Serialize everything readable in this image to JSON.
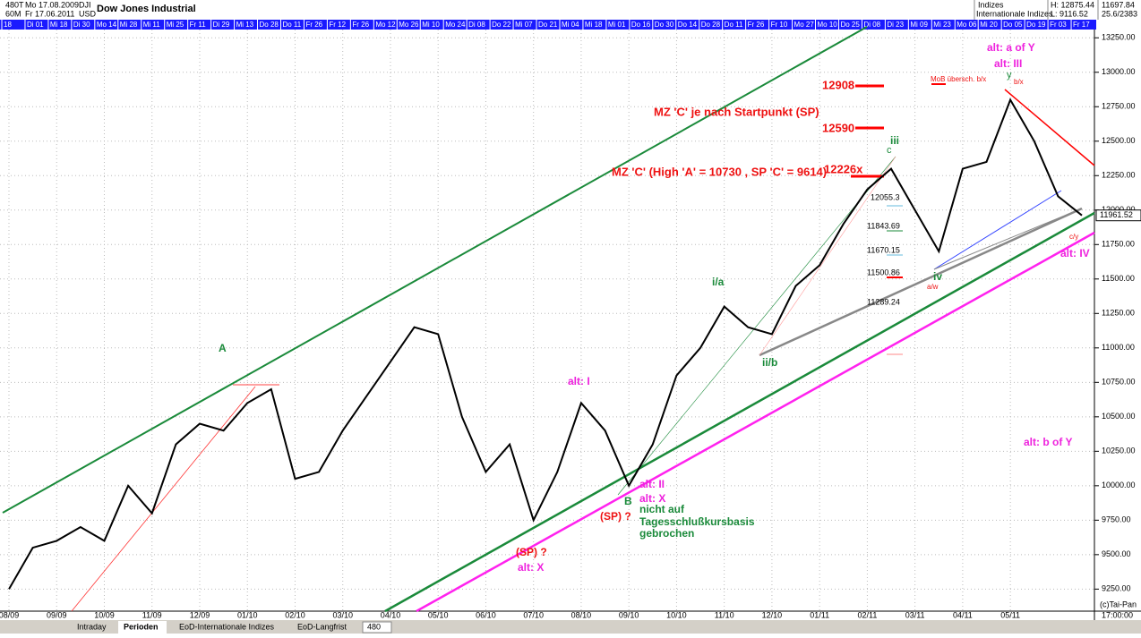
{
  "header": {
    "code": "480T",
    "from": "Mo 17.08.2009",
    "symbol": "DJI",
    "period": "60M",
    "to": "Fr 17.06.2011",
    "currency": "USD",
    "name": "Dow Jones Industrial",
    "group": "Indizes",
    "subgroup": "Internationale Indizes",
    "high": "H: 12875.44",
    "low": "L: 9116.52",
    "value1": "11697.84",
    "value2": "25.6/2383"
  },
  "date_strip": [
    "18",
    "Di 01",
    "Mi 18",
    "Di 30",
    "Mo 14",
    "Mi 28",
    "Mi 11",
    "Mi 25",
    "Fr 11",
    "Di 29",
    "Mi 13",
    "Do 28",
    "Do 11",
    "Fr 26",
    "Fr 12",
    "Fr 26",
    "Mo 12",
    "Mo 26",
    "Mi 10",
    "Mo 24",
    "Di 08",
    "Do 22",
    "Mi 07",
    "Do 21",
    "Mi 04",
    "Mi 18",
    "Mi 01",
    "Do 16",
    "Do 30",
    "Do 14",
    "Do 28",
    "Do 11",
    "Fr 26",
    "Fr 10",
    "Mo 27",
    "Mo 10",
    "Do 25",
    "Di 08",
    "Di 23",
    "Mi 09",
    "Mi 23",
    "Mo 06",
    "Mi 20",
    "Do 05",
    "Do 19",
    "Fr 03",
    "Fr 17"
  ],
  "chart_data": {
    "type": "line",
    "grid": true,
    "categories": [
      "08/09",
      null,
      "09/09",
      null,
      "10/09",
      null,
      "11/09",
      null,
      "12/09",
      null,
      "01/10",
      null,
      "02/10",
      null,
      "03/10",
      null,
      "04/10",
      null,
      "05/10",
      null,
      "06/10",
      null,
      "07/10",
      null,
      "08/10",
      null,
      "09/10",
      null,
      "10/10",
      null,
      "11/10",
      null,
      "12/10",
      null,
      "01/11",
      null,
      "02/11",
      null,
      "03/11",
      null,
      "04/11",
      null,
      "05/11",
      null,
      null,
      null
    ],
    "series": [
      {
        "name": "DJI",
        "color": "#000000",
        "values": [
          9250,
          9550,
          9600,
          9700,
          9600,
          10000,
          9800,
          10300,
          10450,
          10400,
          10600,
          10700,
          10050,
          10100,
          10400,
          10650,
          10900,
          11150,
          11100,
          10500,
          10100,
          10300,
          9750,
          10100,
          10600,
          10400,
          10000,
          10300,
          10800,
          11000,
          11300,
          11150,
          11100,
          11450,
          11600,
          11900,
          12150,
          12300,
          12000,
          11700,
          12300,
          12350,
          12800,
          12500,
          12100,
          11961.52
        ]
      }
    ],
    "ylim": [
      9090,
      13310
    ],
    "yticks": [
      {
        "value": 9250,
        "label": "9250.00"
      },
      {
        "value": 9500,
        "label": "9500.00"
      },
      {
        "value": 9750,
        "label": "9750.00"
      },
      {
        "value": 10000,
        "label": "10000.00"
      },
      {
        "value": 10250,
        "label": "10250.00"
      },
      {
        "value": 10500,
        "label": "10500.00"
      },
      {
        "value": 10750,
        "label": "10750.00"
      },
      {
        "value": 11000,
        "label": "11000.00"
      },
      {
        "value": 11250,
        "label": "11250.00"
      },
      {
        "value": 11500,
        "label": "11500.00"
      },
      {
        "value": 11750,
        "label": "11750.00"
      },
      {
        "value": 12000,
        "label": "12000.00"
      },
      {
        "value": 12250,
        "label": "12250.00"
      },
      {
        "value": 12500,
        "label": "12500.00"
      },
      {
        "value": 12750,
        "label": "12750.00"
      },
      {
        "value": 13000,
        "label": "13000.00"
      },
      {
        "value": 13250,
        "label": "13250.00"
      }
    ],
    "price_label": "11961.52",
    "annotations": [
      "A",
      "alt: I",
      "alt: II",
      "alt: X",
      "B",
      "(SP) ?",
      "nicht auf",
      "Tagesschlußkursbasis",
      "gebrochen",
      "(SP) ?",
      "alt: X",
      "i/a",
      "ii/b",
      "iii",
      "c",
      "iv",
      "a/w",
      "alt: IV",
      "alt: b of Y",
      "alt: a of Y",
      "alt: III",
      "y",
      "b/x",
      "MoB übersch. b/x",
      "12908",
      "12590",
      "12226x",
      "MZ 'C' je nach Startpunkt (SP)",
      "MZ 'C' (High 'A' = 10730 , SP 'C' = 9614)",
      "12055.3",
      "11843.69",
      "11670.15",
      "11500.86",
      "11289.24",
      "c/y"
    ]
  },
  "footer": {
    "copyright": "(c)Tai-Pan",
    "time": "17:00:00"
  },
  "toolbar": {
    "tabs": [
      "Intraday",
      "Perioden",
      "EoD-Internationale Indizes",
      "EoD-Langfrist"
    ],
    "interval": "480"
  }
}
